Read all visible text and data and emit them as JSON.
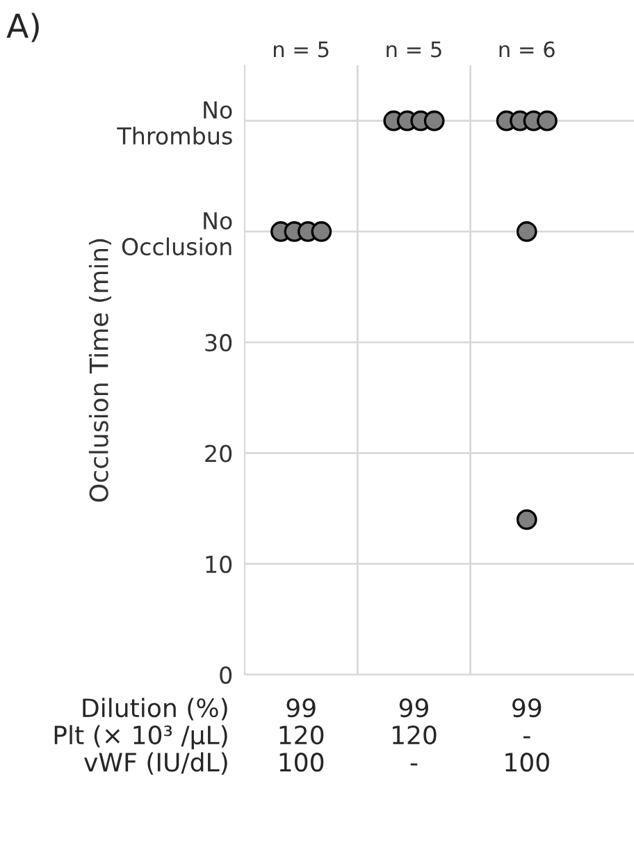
{
  "chart_data": {
    "type": "scatter",
    "title": "A)",
    "ylabel": "Occlusion Time (min)",
    "categories": [
      "99\n120\n100",
      "99\n120\n-",
      "99\n-\n100"
    ],
    "series": [
      {
        "color": "#808080",
        "values": [
          40,
          50,
          50
        ]
      },
      {
        "color": "#808080",
        "values": [
          40,
          50,
          50
        ]
      },
      {
        "color": "#808080",
        "values": [
          40,
          50,
          50
        ]
      },
      {
        "color": "#808080",
        "values": [
          40,
          50,
          50
        ]
      },
      {
        "color": "#808080",
        "values": [
          null,
          null,
          40
        ]
      },
      {
        "color": "#808080",
        "values": [
          null,
          null,
          14
        ]
      }
    ],
    "marker": "circle",
    "ylim": [
      0,
      55
    ],
    "yticks": [
      0,
      10,
      20,
      30,
      {
        "value": 40,
        "label": "No\nOcclusion"
      },
      {
        "value": 50,
        "label": "No\nThrombus"
      }
    ],
    "grid": true,
    "annotations": [
      "n = 5",
      "n = 5",
      "n = 6",
      "Dilution (%)\nPlt (× 10³ /µL)\nvWF (IU/dL)"
    ]
  }
}
